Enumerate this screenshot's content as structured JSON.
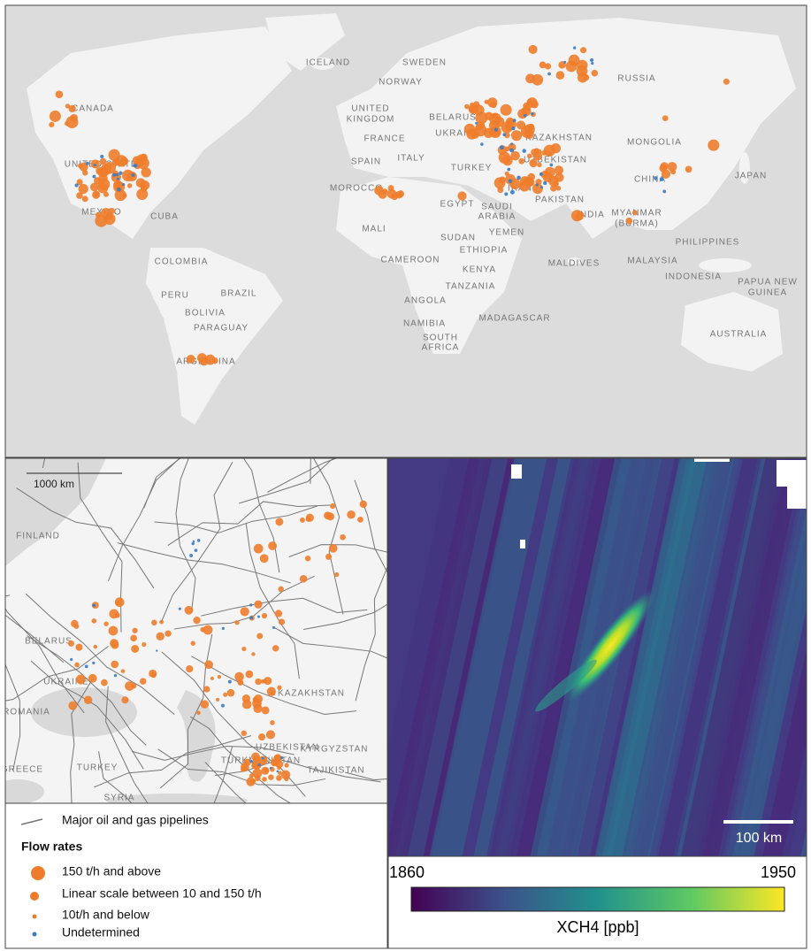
{
  "world_map": {
    "labels": [
      "ICELAND",
      "SWEDEN",
      "NORWAY",
      "RUSSIA",
      "CANADA",
      "UNITED",
      "KINGDOM",
      "BELARUS",
      "UKRAINE",
      "FRANCE",
      "KAZAKHSTAN",
      "MONGOLIA",
      "SPAIN",
      "ITALY",
      "UNITED STATES",
      "TURKEY",
      "UZBEKISTAN",
      "MOROCCO",
      "IRAN",
      "CHINA",
      "JAPAN",
      "PAKISTAN",
      "EGYPT",
      "SAUDI",
      "ARABIA",
      "INDIA",
      "MEXICO",
      "CUBA",
      "MYANMAR",
      "(BURMA)",
      "MALI",
      "YEMEN",
      "SUDAN",
      "PHILIPPINES",
      "ETHIOPIA",
      "CAMEROON",
      "COLOMBIA",
      "MALDIVES",
      "MALAYSIA",
      "KENYA",
      "INDONESIA",
      "PAPUA NEW",
      "GUINEA",
      "TANZANIA",
      "PERU",
      "BRAZIL",
      "ANGOLA",
      "BOLIVIA",
      "MADAGASCAR",
      "NAMIBIA",
      "PARAGUAY",
      "AUSTRALIA",
      "SOUTH",
      "AFRICA",
      "ARGENTINA"
    ]
  },
  "regional_map": {
    "scale_bar": "1000 km",
    "labels": [
      "FINLAND",
      "BELARUS",
      "UKRAINE",
      "ROMANIA",
      "KAZAKHSTAN",
      "UZBEKISTAN",
      "KYRGYZSTAN",
      "TURKMENISTAN",
      "TAJIKISTAN",
      "GREECE",
      "TURKEY",
      "SYRIA"
    ]
  },
  "legend": {
    "pipelines": "Major oil and gas pipelines",
    "title": "Flow rates",
    "items": [
      "150 t/h and above",
      "Linear scale between 10 and 150 t/h",
      "10t/h and below",
      "Undetermined"
    ]
  },
  "xch4_map": {
    "scale_bar": "100 km",
    "colorbar": {
      "min": 1860,
      "max": 1950,
      "label": "XCH4 [ppb]"
    }
  }
}
